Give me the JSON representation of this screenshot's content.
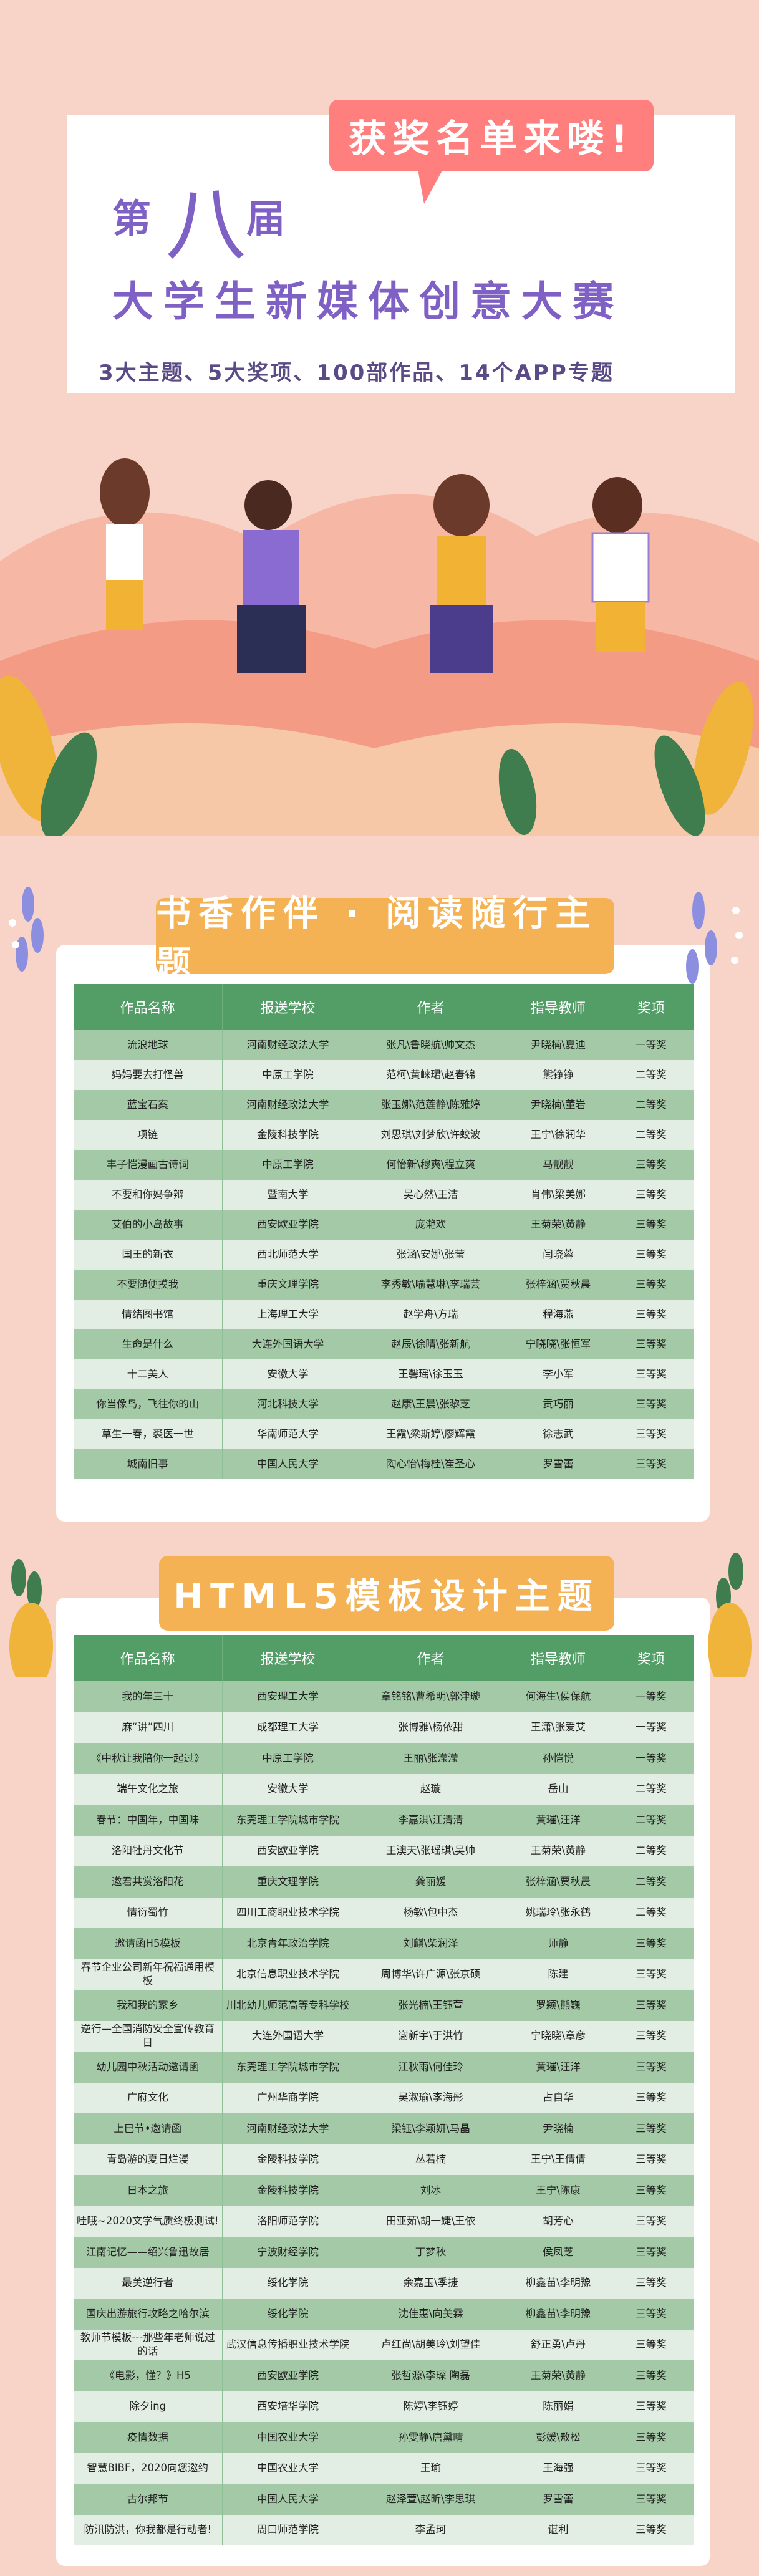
{
  "hero": {
    "bubble": "获奖名单来喽!",
    "edition_prefix": "第",
    "edition_number": "八",
    "edition_suffix": "届",
    "title": "大学生新媒体创意大赛",
    "subtitle": "3大主题、5大奖项、100部作品、14个APP专题"
  },
  "colors": {
    "background": "#f8d3c8",
    "bubble": "#ff7f7f",
    "title": "#7f60c4",
    "badge": "#f4b255",
    "table_header": "#529e66",
    "row_dark": "#a3c9a6",
    "row_light": "#e2ede3"
  },
  "columns": [
    "作品名称",
    "报送学校",
    "作者",
    "指导教师",
    "奖项"
  ],
  "section1": {
    "title": "书香作伴 · 阅读随行主题",
    "rows": [
      [
        "流浪地球",
        "河南财经政法大学",
        "张凡\\鲁晓航\\帅文杰",
        "尹晓楠\\夏迪",
        "一等奖"
      ],
      [
        "妈妈要去打怪兽",
        "中原工学院",
        "范柯\\黄崃珺\\赵春锦",
        "熊铮铮",
        "二等奖"
      ],
      [
        "蓝宝石案",
        "河南财经政法大学",
        "张玉娜\\范莲静\\陈雅婷",
        "尹晓楠\\董岩",
        "二等奖"
      ],
      [
        "项链",
        "金陵科技学院",
        "刘思琪\\刘梦欣\\许蛟波",
        "王宁\\徐润华",
        "二等奖"
      ],
      [
        "丰子恺漫画古诗词",
        "中原工学院",
        "何怡新\\穆爽\\程立爽",
        "马靓靓",
        "三等奖"
      ],
      [
        "不要和你妈争辩",
        "暨南大学",
        "吴心然\\王洁",
        "肖伟\\梁美娜",
        "三等奖"
      ],
      [
        "艾伯的小岛故事",
        "西安欧亚学院",
        "庞滟欢",
        "王菊荣\\黄静",
        "三等奖"
      ],
      [
        "国王的新衣",
        "西北师范大学",
        "张涵\\安娜\\张莹",
        "闫晓蓉",
        "三等奖"
      ],
      [
        "不要随便摸我",
        "重庆文理学院",
        "李秀敏\\喻慧琳\\李瑞芸",
        "张梓涵\\贾秋晨",
        "三等奖"
      ],
      [
        "情绪图书馆",
        "上海理工大学",
        "赵学舟\\方瑞",
        "程海燕",
        "三等奖"
      ],
      [
        "生命是什么",
        "大连外国语大学",
        "赵辰\\徐晴\\张新航",
        "宁晓晓\\张恒军",
        "三等奖"
      ],
      [
        "十二美人",
        "安徽大学",
        "王馨瑶\\徐玉玉",
        "李小军",
        "三等奖"
      ],
      [
        "你当像鸟，飞往你的山",
        "河北科技大学",
        "赵康\\王晨\\张黎芝",
        "贡巧丽",
        "三等奖"
      ],
      [
        "草生一春，裘医一世",
        "华南师范大学",
        "王霞\\梁斯婷\\廖辉霞",
        "徐志武",
        "三等奖"
      ],
      [
        "城南旧事",
        "中国人民大学",
        "陶心怡\\梅桂\\崔圣心",
        "罗雪蕾",
        "三等奖"
      ]
    ]
  },
  "section2": {
    "title": "HTML5模板设计主题",
    "rows": [
      [
        "我的年三十",
        "西安理工大学",
        "章铭铭\\曹希明\\郭津璇",
        "何海生\\侯保航",
        "一等奖"
      ],
      [
        "麻“讲”四川",
        "成都理工大学",
        "张博雅\\杨依甜",
        "王潇\\张爱艾",
        "一等奖"
      ],
      [
        "《中秋让我陪你一起过》",
        "中原工学院",
        "王丽\\张滢滢",
        "孙恺悦",
        "一等奖"
      ],
      [
        "端午文化之旅",
        "安徽大学",
        "赵璇",
        "岳山",
        "二等奖"
      ],
      [
        "春节：中国年，中国味",
        "东莞理工学院城市学院",
        "李嘉淇\\江清清",
        "黄璀\\汪洋",
        "二等奖"
      ],
      [
        "洛阳牡丹文化节",
        "西安欧亚学院",
        "王澳天\\张瑶琪\\吴帅",
        "王菊荣\\黄静",
        "二等奖"
      ],
      [
        "邀君共赏洛阳花",
        "重庆文理学院",
        "龚丽媛",
        "张梓涵\\贾秋晨",
        "二等奖"
      ],
      [
        "情衍蜀竹",
        "四川工商职业技术学院",
        "杨敏\\包中杰",
        "姚瑞玲\\张永鹤",
        "二等奖"
      ],
      [
        "邀请函H5模板",
        "北京青年政治学院",
        "刘麒\\柴润泽",
        "师静",
        "三等奖"
      ],
      [
        "春节企业公司新年祝福通用模板",
        "北京信息职业技术学院",
        "周博华\\许广源\\张京硕",
        "陈建",
        "三等奖"
      ],
      [
        "我和我的家乡",
        "川北幼儿师范高等专科学校",
        "张光楠\\王钰萱",
        "罗颖\\熊巍",
        "三等奖"
      ],
      [
        "逆行—全国消防安全宣传教育日",
        "大连外国语大学",
        "谢新宇\\于洪竹",
        "宁晓晓\\章彦",
        "三等奖"
      ],
      [
        "幼儿园中秋活动邀请函",
        "东莞理工学院城市学院",
        "江秋雨\\何佳玲",
        "黄璀\\汪洋",
        "三等奖"
      ],
      [
        "广府文化",
        "广州华商学院",
        "吴淑瑜\\李海彤",
        "占自华",
        "三等奖"
      ],
      [
        "上巳节•邀请函",
        "河南财经政法大学",
        "梁钰\\李颖妍\\马晶",
        "尹晓楠",
        "三等奖"
      ],
      [
        "青岛游的夏日烂漫",
        "金陵科技学院",
        "丛若楠",
        "王宁\\王倩倩",
        "三等奖"
      ],
      [
        "日本之旅",
        "金陵科技学院",
        "刘冰",
        "王宁\\陈康",
        "三等奖"
      ],
      [
        "哇哦~2020文学气质终极测试!",
        "洛阳师范学院",
        "田亚茹\\胡一婕\\王依",
        "胡芳心",
        "三等奖"
      ],
      [
        "江南记忆——绍兴鲁迅故居",
        "宁波财经学院",
        "丁梦秋",
        "侯凤芝",
        "三等奖"
      ],
      [
        "最美逆行者",
        "绥化学院",
        "余嘉玉\\季捷",
        "柳鑫苗\\李明豫",
        "三等奖"
      ],
      [
        "国庆出游旅行攻略之哈尔滨",
        "绥化学院",
        "沈佳惠\\向美霖",
        "柳鑫苗\\李明豫",
        "三等奖"
      ],
      [
        "教师节模板---那些年老师说过的话",
        "武汉信息传播职业技术学院",
        "卢红尚\\胡美玲\\刘望佳",
        "舒正勇\\卢丹",
        "三等奖"
      ],
      [
        "《电影，懂？》H5",
        "西安欧亚学院",
        "张哲源\\李琛 陶磊",
        "王菊荣\\黄静",
        "三等奖"
      ],
      [
        "除夕ing",
        "西安培华学院",
        "陈婷\\李钰婷",
        "陈丽娟",
        "三等奖"
      ],
      [
        "疫情数据",
        "中国农业大学",
        "孙雯静\\唐黛晴",
        "彭媛\\敖松",
        "三等奖"
      ],
      [
        "智慧BIBF，2020向您邀约",
        "中国农业大学",
        "王瑜",
        "王海强",
        "三等奖"
      ],
      [
        "古尔邦节",
        "中国人民大学",
        "赵泽萱\\赵昕\\李思琪",
        "罗雪蕾",
        "三等奖"
      ],
      [
        "防汛防洪，你我都是行动者!",
        "周口师范学院",
        "李孟珂",
        "谌利",
        "三等奖"
      ]
    ]
  }
}
